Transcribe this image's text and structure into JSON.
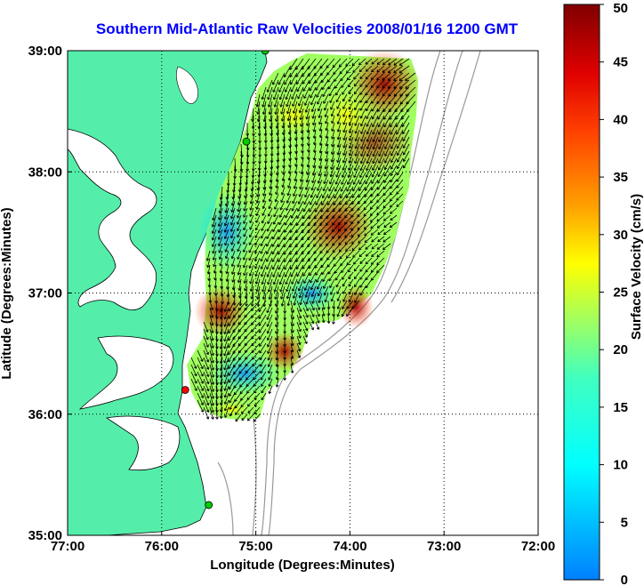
{
  "title": "Southern Mid-Atlantic Raw Velocities 2008/01/16 1200 GMT",
  "title_color": "#0000ff",
  "map": {
    "xlabel": "Longitude (Degrees:Minutes)",
    "ylabel": "Latitude (Degrees:Minutes)",
    "xlim": [
      -77,
      -72
    ],
    "ylim": [
      35,
      39
    ],
    "xticks": [
      {
        "v": -77,
        "label": "77:00"
      },
      {
        "v": -76,
        "label": "76:00"
      },
      {
        "v": -75,
        "label": "75:00"
      },
      {
        "v": -74,
        "label": "74:00"
      },
      {
        "v": -73,
        "label": "73:00"
      },
      {
        "v": -72,
        "label": "72:00"
      }
    ],
    "yticks": [
      {
        "v": 35,
        "label": "35:00"
      },
      {
        "v": 36,
        "label": "36:00"
      },
      {
        "v": 37,
        "label": "37:00"
      },
      {
        "v": 38,
        "label": "38:00"
      },
      {
        "v": 39,
        "label": "39:00"
      }
    ],
    "grid": "dotted",
    "land_color": "#54eeaa"
  },
  "colorbar": {
    "label": "Surface Velocity (cm/s)",
    "min": 0,
    "max": 50,
    "ticks": [
      "0",
      "5",
      "10",
      "15",
      "20",
      "25",
      "30",
      "35",
      "40",
      "45",
      "50"
    ],
    "colormap": "jet"
  },
  "stations": [
    {
      "lon": -74.9,
      "lat": 39.0,
      "color": "#00cc00"
    },
    {
      "lon": -75.1,
      "lat": 38.25,
      "color": "#00cc00"
    },
    {
      "lon": -75.75,
      "lat": 36.2,
      "color": "#ff0000"
    },
    {
      "lon": -75.5,
      "lat": 35.25,
      "color": "#00cc00"
    }
  ]
}
